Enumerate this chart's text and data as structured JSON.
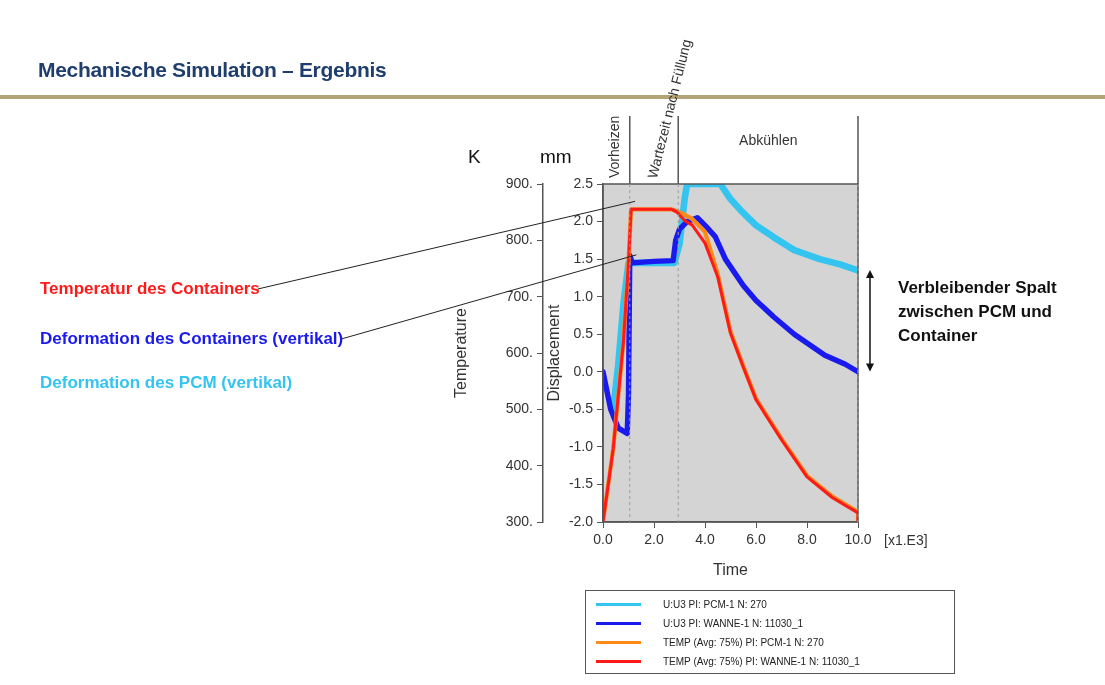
{
  "chart_data": {
    "type": "line",
    "title": "Mechanische Simulation – Ergebnis",
    "xlabel": "Time",
    "ylabel": "Displacement",
    "y2label": "Temperature",
    "xlim": [
      0,
      10
    ],
    "xticks": [
      {
        "value": 0,
        "label": "0.0"
      },
      {
        "value": 2,
        "label": "2.0"
      },
      {
        "value": 4,
        "label": "4.0"
      },
      {
        "value": 6,
        "label": "6.0"
      },
      {
        "value": 8,
        "label": "8.0"
      },
      {
        "value": 10,
        "label": "10.0"
      }
    ],
    "ylim": [
      -2,
      2.5
    ],
    "yticks": [
      {
        "value": -2,
        "label": "-2.0"
      },
      {
        "value": -1.5,
        "label": "-1.5"
      },
      {
        "value": -1,
        "label": "-1.0"
      },
      {
        "value": -0.5,
        "label": "-0.5"
      },
      {
        "value": 0,
        "label": "0.0"
      },
      {
        "value": 0.5,
        "label": "0.5"
      },
      {
        "value": 1,
        "label": "1.0"
      },
      {
        "value": 1.5,
        "label": "1.5"
      },
      {
        "value": 2,
        "label": "2.0"
      },
      {
        "value": 2.5,
        "label": "2.5"
      }
    ],
    "y2lim": [
      300,
      900
    ],
    "y2ticks": [
      {
        "value": 300,
        "label": "300."
      },
      {
        "value": 400,
        "label": "400."
      },
      {
        "value": 500,
        "label": "500."
      },
      {
        "value": 600,
        "label": "600."
      },
      {
        "value": 700,
        "label": "700."
      },
      {
        "value": 800,
        "label": "800."
      },
      {
        "value": 900,
        "label": "900."
      }
    ],
    "grid": false,
    "legend": "bottom",
    "series": [
      {
        "name": "U:U3 PI: PCM-1 N: 270",
        "color": "#33c4f0",
        "x": [
          0.4,
          0.6,
          0.8,
          1.0,
          2.0,
          2.8,
          3.0,
          3.2,
          3.3,
          4.6,
          5.0,
          5.4,
          6.0,
          6.7,
          7.5,
          8.5,
          9.3,
          10
        ],
        "values": [
          -0.5,
          0.1,
          0.9,
          1.45,
          1.45,
          1.45,
          1.7,
          2.3,
          2.5,
          2.5,
          2.3,
          2.15,
          1.95,
          1.79,
          1.62,
          1.5,
          1.43,
          1.35
        ]
      },
      {
        "name": "U:U3 PI: WANNE-1 N: 11030_1",
        "color": "#1a1aee",
        "x": [
          0,
          0.3,
          0.6,
          0.95,
          1.0,
          1.05,
          1.15,
          2.0,
          2.75,
          2.85,
          3.0,
          3.3,
          3.7,
          4.0,
          4.4,
          4.8,
          5.5,
          6.0,
          6.7,
          7.5,
          8.7,
          9.5,
          10
        ],
        "values": [
          0,
          -0.5,
          -0.75,
          -0.82,
          -0.3,
          1.55,
          1.45,
          1.47,
          1.48,
          1.75,
          1.9,
          2.0,
          2.05,
          1.95,
          1.8,
          1.5,
          1.15,
          0.95,
          0.73,
          0.5,
          0.22,
          0.1,
          0.0
        ]
      },
      {
        "name": "TEMP (Avg: 75%) PI: PCM-1 N: 270",
        "color": "#ff8a1a",
        "axis": "y2",
        "x": [
          0,
          0.4,
          0.8,
          1.0,
          1.1,
          2.7,
          3.0,
          3.5,
          4.0,
          4.5,
          5.0,
          5.5,
          6.0,
          7.0,
          8.0,
          9.0,
          10,
          10
        ],
        "values": [
          300,
          430,
          620,
          760,
          855,
          855,
          850,
          838,
          815,
          740,
          638,
          577,
          519,
          448,
          382,
          345,
          318,
          300
        ]
      },
      {
        "name": "TEMP (Avg: 75%) PI: WANNE-1 N: 11030_1",
        "color": "#ff1a1a",
        "axis": "y2",
        "x": [
          0,
          0.4,
          0.8,
          1.0,
          1.1,
          2.7,
          2.9,
          3.2,
          3.5,
          4.0,
          4.5,
          5.0,
          5.5,
          6.0,
          7.0,
          8.0,
          9.0,
          10,
          10
        ],
        "values": [
          300,
          430,
          620,
          760,
          855,
          855,
          850,
          835,
          827,
          795,
          735,
          635,
          575,
          517,
          446,
          380,
          343,
          316,
          300
        ]
      }
    ],
    "ref_lines": [
      {
        "axis": "x",
        "value": 1.05
      },
      {
        "axis": "x",
        "value": 2.95
      },
      {
        "axis": "x",
        "value": 10
      }
    ],
    "annotations": [
      "K",
      "mm",
      "[x1.E3]",
      "Temperatur des Containers",
      "Deformation des Containers (vertikal)",
      "Deformation des PCM (vertikal)",
      "Verbleibender Spalt zwischen PCM und Container",
      "Vorheizen",
      "Wartezeit nach Füllung",
      "Abkühlen"
    ]
  }
}
